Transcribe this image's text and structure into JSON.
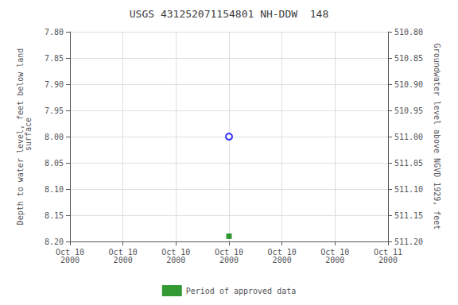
{
  "chart_data": {
    "type": "scatter",
    "title": "USGS 431252071154801 NH-DDW  148",
    "ylabel": "Depth to water level, feet below land\n surface",
    "y2label": "Groundwater level above NGVD 1929, feet",
    "categories": [
      "Oct 10\n2000",
      "Oct 10\n2000",
      "Oct 10\n2000",
      "Oct 10\n2000",
      "Oct 10\n2000",
      "Oct 10\n2000",
      "Oct 11\n2000"
    ],
    "series": [
      {
        "color": "blue",
        "marker": "open_circle",
        "values": [
          null,
          null,
          null,
          8.0,
          null,
          null,
          null
        ]
      },
      {
        "name": "Period of approved data",
        "color": "green",
        "marker": "square",
        "values": [
          null,
          null,
          null,
          8.19,
          null,
          null,
          null
        ]
      }
    ],
    "ylim": [
      8.2,
      7.8
    ],
    "yticks": [
      {
        "value": 7.8,
        "label": "7.80"
      },
      7.85,
      {
        "value": 7.9,
        "label": "7.90"
      },
      7.95,
      {
        "value": 8.0,
        "label": "8.00"
      },
      8.05,
      {
        "value": 8.1,
        "label": "8.10"
      },
      8.15,
      {
        "value": 8.2,
        "label": "8.20"
      }
    ],
    "y2lim": [
      511.2,
      510.8
    ],
    "y2ticks": [
      {
        "value": 511.2,
        "label": "511.20"
      },
      511.15,
      {
        "value": 511.1,
        "label": "511.10"
      },
      511.05,
      {
        "value": 511.0,
        "label": "511.00"
      },
      510.95,
      {
        "value": 510.9,
        "label": "510.90"
      },
      510.85,
      {
        "value": 510.8,
        "label": "510.80"
      }
    ],
    "grid": true,
    "legend": "bottom"
  }
}
